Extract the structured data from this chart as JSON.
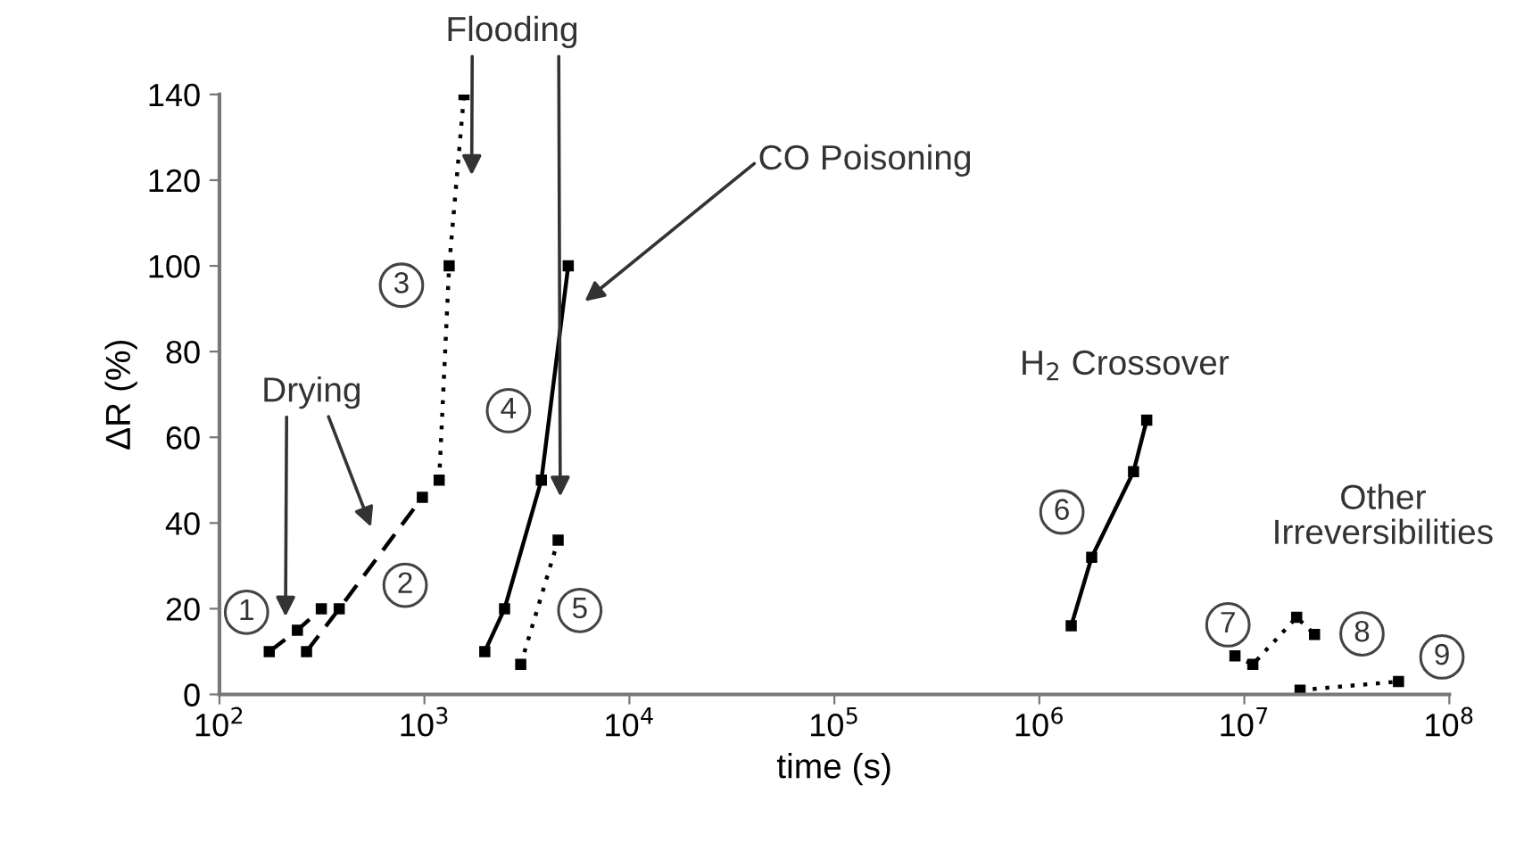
{
  "chart_data": {
    "type": "line",
    "xlabel": "time (s)",
    "ylabel": "ΔR (%)",
    "log": "x",
    "grid": false,
    "marker": "square",
    "xlim": [
      100,
      100000000
    ],
    "ylim": [
      0,
      140
    ],
    "xticks": [
      {
        "value": 100,
        "label": "10$^{2}$"
      },
      {
        "value": 1000,
        "label": "10$^{3}$"
      },
      {
        "value": 10000,
        "label": "10$^{4}$"
      },
      {
        "value": 100000,
        "label": "10$^{5}$"
      },
      {
        "value": 1000000,
        "label": "10$^{6}$"
      },
      {
        "value": 10000000,
        "label": "10$^{7}$"
      },
      {
        "value": 100000000,
        "label": "10$^{8}$"
      }
    ],
    "yticks": [
      0,
      20,
      40,
      60,
      80,
      100,
      120,
      140
    ],
    "series": [
      {
        "color": "#000000",
        "line_style": "dashed",
        "x": [
          175,
          240,
          314
        ],
        "values": [
          10,
          15,
          20
        ]
      },
      {
        "color": "#000000",
        "line_style": "dashed",
        "x": [
          266,
          384,
          977
        ],
        "values": [
          10,
          20,
          46
        ]
      },
      {
        "color": "#000000",
        "line_style": "dotted",
        "x": [
          1180,
          1320,
          1560
        ],
        "values": [
          50,
          100,
          140
        ]
      },
      {
        "color": "#000000",
        "line_style": "solid",
        "x": [
          1970,
          2460,
          3720,
          5030
        ],
        "values": [
          10,
          20,
          50,
          100
        ]
      },
      {
        "color": "#000000",
        "line_style": "dotted",
        "x": [
          2950,
          4490
        ],
        "values": [
          7,
          36
        ]
      },
      {
        "color": "#000000",
        "line_style": "solid",
        "x": [
          1430000,
          1800000,
          2880000,
          3340000
        ],
        "values": [
          16,
          32,
          52,
          64
        ]
      },
      {
        "color": "#000000",
        "line_style": "dotted",
        "x": [
          9000000,
          11000000,
          18000000,
          22000000
        ],
        "values": [
          9,
          7,
          18,
          14
        ]
      },
      {
        "color": "#000000",
        "line_style": "dotted",
        "x": [
          18700000,
          56500000
        ],
        "values": [
          1,
          3
        ]
      }
    ],
    "annotations": [
      "Flooding",
      "CO Poisoning",
      "Drying",
      "H$_{2}$ Crossover",
      "Other\nIrreversibilities",
      "1",
      "2",
      "3",
      "4",
      "5",
      "6",
      "7",
      "8",
      "9"
    ]
  }
}
